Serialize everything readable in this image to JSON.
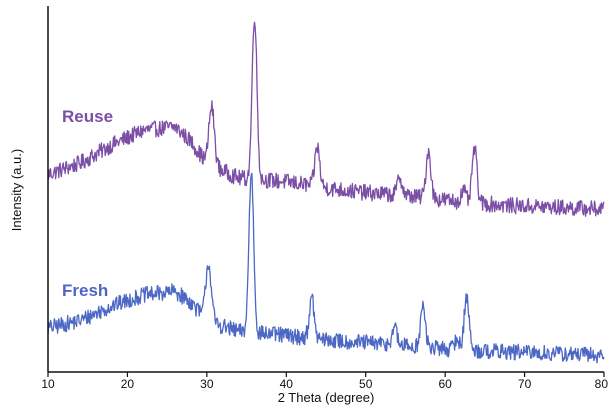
{
  "chart_data": {
    "type": "line",
    "title": "",
    "xlabel": "2 Theta (degree)",
    "ylabel": "Intensity (a.u.)",
    "xlim": [
      10,
      80
    ],
    "xticks": [
      10,
      20,
      30,
      40,
      50,
      60,
      70,
      80
    ],
    "xtick_labels": [
      "10",
      "20",
      "30",
      "40",
      "50",
      "60",
      "70",
      "80"
    ],
    "y_units": "a.u. (arbitrary, stacked patterns)",
    "ylim": [
      0,
      100
    ],
    "grid": false,
    "legend": "none (series labelled directly on plot)",
    "series": [
      {
        "name": "Reuse",
        "color": "#7b4fa6",
        "baseline": {
          "x": [
            10,
            14,
            18,
            22,
            26,
            28,
            30,
            34,
            40,
            46,
            50,
            56,
            62,
            68,
            74,
            80
          ],
          "y": [
            54,
            57,
            62,
            66,
            67,
            63,
            57,
            53,
            52,
            50,
            49,
            48,
            46.5,
            45.5,
            45,
            44.5
          ]
        },
        "peaks": [
          {
            "x": 30.6,
            "height": 16,
            "width": 0.35
          },
          {
            "x": 36.0,
            "height": 45,
            "width": 0.3
          },
          {
            "x": 43.9,
            "height": 11,
            "width": 0.3
          },
          {
            "x": 54.3,
            "height": 5,
            "width": 0.3
          },
          {
            "x": 57.9,
            "height": 13,
            "width": 0.3
          },
          {
            "x": 63.7,
            "height": 15,
            "width": 0.3
          },
          {
            "x": 62.3,
            "height": 3,
            "width": 0.3
          }
        ],
        "noise": 2.2
      },
      {
        "name": "Fresh",
        "color": "#4d67c4",
        "baseline": {
          "x": [
            10,
            14,
            18,
            22,
            26,
            28,
            30,
            34,
            40,
            46,
            50,
            56,
            62,
            68,
            74,
            80
          ],
          "y": [
            12,
            14,
            18,
            21,
            22,
            19,
            14,
            11,
            10,
            8.5,
            8,
            7,
            6,
            5.5,
            5,
            4.5
          ]
        },
        "peaks": [
          {
            "x": 30.2,
            "height": 16,
            "width": 0.35
          },
          {
            "x": 35.6,
            "height": 44,
            "width": 0.3
          },
          {
            "x": 43.2,
            "height": 11,
            "width": 0.3
          },
          {
            "x": 53.6,
            "height": 5,
            "width": 0.3
          },
          {
            "x": 57.2,
            "height": 11,
            "width": 0.3
          },
          {
            "x": 62.7,
            "height": 15,
            "width": 0.3
          },
          {
            "x": 61.5,
            "height": 3,
            "width": 0.3
          }
        ],
        "noise": 2.2
      }
    ]
  }
}
